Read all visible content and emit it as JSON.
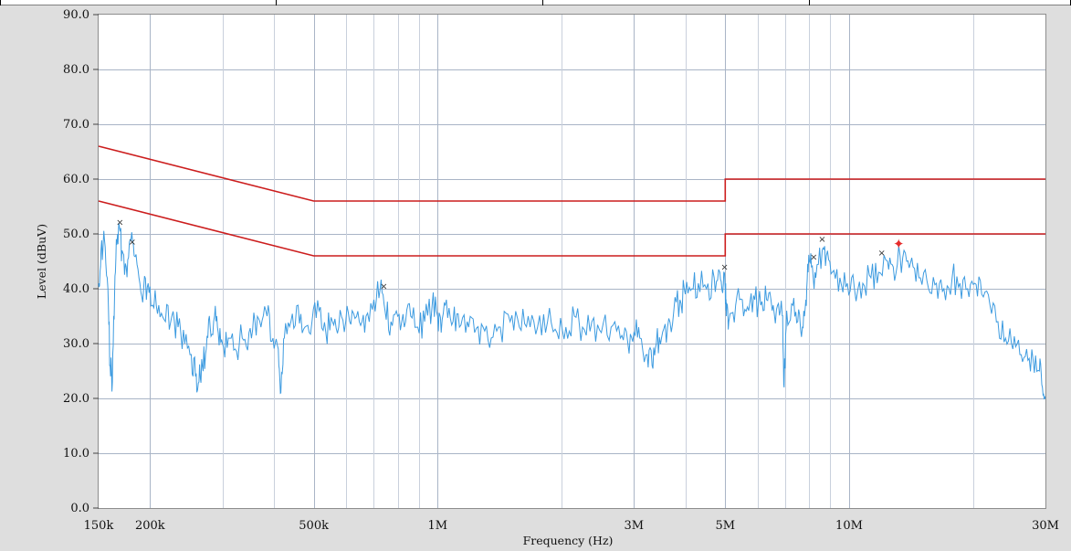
{
  "chart_data": {
    "type": "line",
    "title": "",
    "xlabel": "Frequency (Hz)",
    "ylabel": "Level (dBuV)",
    "x_scale": "log",
    "x_unit": "Hz",
    "xlim": [
      150000,
      30000000
    ],
    "ylim": [
      0,
      90
    ],
    "grid": true,
    "y_ticks": [
      {
        "value": 0,
        "label": "0.0"
      },
      {
        "value": 10,
        "label": "10.0"
      },
      {
        "value": 20,
        "label": "20.0"
      },
      {
        "value": 30,
        "label": "30.0"
      },
      {
        "value": 40,
        "label": "40.0"
      },
      {
        "value": 50,
        "label": "50.0"
      },
      {
        "value": 60,
        "label": "60.0"
      },
      {
        "value": 70,
        "label": "70.0"
      },
      {
        "value": 80,
        "label": "80.0"
      },
      {
        "value": 90,
        "label": "90.0"
      }
    ],
    "x_ticks": [
      {
        "value": 150000,
        "label": "150k"
      },
      {
        "value": 200000,
        "label": "200k"
      },
      {
        "value": 500000,
        "label": "500k"
      },
      {
        "value": 1000000,
        "label": "1M"
      },
      {
        "value": 3000000,
        "label": "3M"
      },
      {
        "value": 5000000,
        "label": "5M"
      },
      {
        "value": 10000000,
        "label": "10M"
      },
      {
        "value": 30000000,
        "label": "30M"
      }
    ],
    "x_minor_gridlines": [
      300000,
      400000,
      600000,
      700000,
      800000,
      900000,
      2000000,
      4000000,
      6000000,
      7000000,
      8000000,
      9000000,
      20000000
    ],
    "limit_lines": [
      {
        "color": "#cc1d1d",
        "points": [
          [
            150000,
            66
          ],
          [
            500000,
            56
          ],
          [
            5000000,
            56
          ],
          [
            5000000,
            60
          ],
          [
            30000000,
            60
          ]
        ]
      },
      {
        "color": "#cc1d1d",
        "points": [
          [
            150000,
            56
          ],
          [
            500000,
            46
          ],
          [
            5000000,
            46
          ],
          [
            5000000,
            50
          ],
          [
            30000000,
            50
          ]
        ]
      }
    ],
    "series": [
      {
        "color": "#3d9be0",
        "points": [
          [
            150000,
            41
          ],
          [
            152000,
            47
          ],
          [
            155000,
            49
          ],
          [
            158000,
            40
          ],
          [
            160000,
            26
          ],
          [
            162000,
            23
          ],
          [
            164000,
            39
          ],
          [
            166000,
            48
          ],
          [
            168000,
            52
          ],
          [
            171000,
            47
          ],
          [
            175000,
            44
          ],
          [
            179000,
            49
          ],
          [
            183000,
            46
          ],
          [
            188000,
            42
          ],
          [
            193000,
            40
          ],
          [
            198000,
            41
          ],
          [
            203000,
            37
          ],
          [
            210000,
            37
          ],
          [
            218000,
            34
          ],
          [
            226000,
            35
          ],
          [
            234000,
            33
          ],
          [
            243000,
            30
          ],
          [
            252000,
            28
          ],
          [
            258000,
            24
          ],
          [
            263000,
            23
          ],
          [
            268000,
            26
          ],
          [
            274000,
            29
          ],
          [
            280000,
            33
          ],
          [
            287000,
            35
          ],
          [
            293000,
            32
          ],
          [
            300000,
            30
          ],
          [
            310000,
            31
          ],
          [
            322000,
            29
          ],
          [
            335000,
            31
          ],
          [
            348000,
            32
          ],
          [
            360000,
            34
          ],
          [
            372000,
            33
          ],
          [
            385000,
            35
          ],
          [
            398000,
            31
          ],
          [
            410000,
            29
          ],
          [
            416000,
            21
          ],
          [
            424000,
            31
          ],
          [
            440000,
            34
          ],
          [
            458000,
            37
          ],
          [
            476000,
            33
          ],
          [
            495000,
            34
          ],
          [
            515000,
            36
          ],
          [
            535000,
            32
          ],
          [
            555000,
            34
          ],
          [
            575000,
            33
          ],
          [
            598000,
            34
          ],
          [
            620000,
            36
          ],
          [
            645000,
            34
          ],
          [
            670000,
            35
          ],
          [
            700000,
            38
          ],
          [
            725000,
            40
          ],
          [
            745000,
            36
          ],
          [
            770000,
            34
          ],
          [
            800000,
            35
          ],
          [
            830000,
            33
          ],
          [
            860000,
            35
          ],
          [
            895000,
            33
          ],
          [
            930000,
            34
          ],
          [
            970000,
            37
          ],
          [
            1000000,
            35
          ],
          [
            1020000,
            32
          ],
          [
            1050000,
            38
          ],
          [
            1090000,
            34
          ],
          [
            1130000,
            33
          ],
          [
            1180000,
            34
          ],
          [
            1230000,
            32
          ],
          [
            1290000,
            33
          ],
          [
            1350000,
            31
          ],
          [
            1420000,
            33
          ],
          [
            1500000,
            34
          ],
          [
            1580000,
            33
          ],
          [
            1660000,
            35
          ],
          [
            1750000,
            33
          ],
          [
            1850000,
            34
          ],
          [
            1950000,
            32
          ],
          [
            2050000,
            33
          ],
          [
            2150000,
            35
          ],
          [
            2250000,
            33
          ],
          [
            2370000,
            34
          ],
          [
            2500000,
            32
          ],
          [
            2640000,
            33
          ],
          [
            2780000,
            31
          ],
          [
            2900000,
            30
          ],
          [
            3000000,
            32
          ],
          [
            3100000,
            31
          ],
          [
            3230000,
            28
          ],
          [
            3320000,
            26
          ],
          [
            3400000,
            30
          ],
          [
            3500000,
            31
          ],
          [
            3620000,
            33
          ],
          [
            3750000,
            36
          ],
          [
            3880000,
            38
          ],
          [
            4000000,
            39
          ],
          [
            4150000,
            40
          ],
          [
            4300000,
            41
          ],
          [
            4500000,
            40
          ],
          [
            4700000,
            42
          ],
          [
            4850000,
            43
          ],
          [
            4950000,
            41
          ],
          [
            5000000,
            40
          ],
          [
            5030000,
            35
          ],
          [
            5100000,
            34
          ],
          [
            5300000,
            37
          ],
          [
            5500000,
            38
          ],
          [
            5700000,
            36
          ],
          [
            5900000,
            38
          ],
          [
            6100000,
            37
          ],
          [
            6300000,
            38
          ],
          [
            6500000,
            36
          ],
          [
            6700000,
            37
          ],
          [
            6880000,
            35
          ],
          [
            6950000,
            22
          ],
          [
            7050000,
            36
          ],
          [
            7300000,
            37
          ],
          [
            7500000,
            34
          ],
          [
            7700000,
            33
          ],
          [
            7850000,
            38
          ],
          [
            7950000,
            43
          ],
          [
            8100000,
            44
          ],
          [
            8300000,
            42
          ],
          [
            8600000,
            47
          ],
          [
            8800000,
            46
          ],
          [
            9100000,
            43
          ],
          [
            9500000,
            42
          ],
          [
            9900000,
            41
          ],
          [
            10300000,
            40
          ],
          [
            10800000,
            41
          ],
          [
            11300000,
            42
          ],
          [
            11800000,
            43
          ],
          [
            12400000,
            45
          ],
          [
            12800000,
            44
          ],
          [
            13300000,
            46
          ],
          [
            13800000,
            45
          ],
          [
            14300000,
            44
          ],
          [
            14900000,
            42
          ],
          [
            15600000,
            40
          ],
          [
            16300000,
            41
          ],
          [
            17000000,
            40
          ],
          [
            17800000,
            42
          ],
          [
            18600000,
            41
          ],
          [
            19400000,
            40
          ],
          [
            20200000,
            41
          ],
          [
            21000000,
            39
          ],
          [
            22000000,
            37
          ],
          [
            23000000,
            34
          ],
          [
            24000000,
            31
          ],
          [
            25000000,
            29
          ],
          [
            26000000,
            28
          ],
          [
            27000000,
            29
          ],
          [
            28000000,
            27
          ],
          [
            29000000,
            25
          ],
          [
            29500000,
            22
          ],
          [
            30000000,
            20
          ]
        ]
      }
    ],
    "markers": [
      {
        "x": 169000,
        "y": 52.2,
        "symbol": "×"
      },
      {
        "x": 181000,
        "y": 48.6,
        "symbol": "×"
      },
      {
        "x": 740000,
        "y": 40.5,
        "symbol": "×"
      },
      {
        "x": 4980000,
        "y": 44.0,
        "symbol": "×"
      },
      {
        "x": 8200000,
        "y": 45.8,
        "symbol": "×"
      },
      {
        "x": 8600000,
        "y": 49.1,
        "symbol": "×"
      },
      {
        "x": 12000000,
        "y": 46.6,
        "symbol": "×"
      },
      {
        "x": 13200000,
        "y": 48.2,
        "symbol": "✦",
        "highlight": true
      }
    ]
  }
}
